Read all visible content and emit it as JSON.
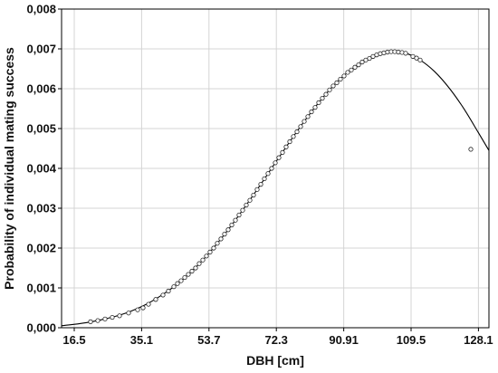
{
  "chart_data": {
    "type": "scatter",
    "xlabel": "DBH [cm]",
    "ylabel": "Probability of individual mating success",
    "xlim": [
      13.0,
      131.0
    ],
    "ylim": [
      0.0,
      0.008
    ],
    "xticks": [
      {
        "value": 16.5,
        "label": "16.5"
      },
      {
        "value": 35.1,
        "label": "35.1"
      },
      {
        "value": 53.7,
        "label": "53.7"
      },
      {
        "value": 72.3,
        "label": "72.3"
      },
      {
        "value": 90.91,
        "label": "90.91"
      },
      {
        "value": 109.5,
        "label": "109.5"
      },
      {
        "value": 128.1,
        "label": "128.1"
      }
    ],
    "yticks": [
      {
        "value": 0.0,
        "label": "0,000"
      },
      {
        "value": 0.001,
        "label": "0,001"
      },
      {
        "value": 0.002,
        "label": "0,002"
      },
      {
        "value": 0.003,
        "label": "0,003"
      },
      {
        "value": 0.004,
        "label": "0,004"
      },
      {
        "value": 0.005,
        "label": "0,005"
      },
      {
        "value": 0.006,
        "label": "0,006"
      },
      {
        "value": 0.007,
        "label": "0,007"
      },
      {
        "value": 0.008,
        "label": "0,008"
      }
    ],
    "grid": true,
    "fit_curve": {
      "x": [
        13,
        16,
        20,
        24,
        28,
        32,
        36,
        40,
        44,
        48,
        52,
        56,
        60,
        64,
        68,
        72,
        76,
        80,
        84,
        88,
        92,
        96,
        100,
        104,
        108,
        112,
        116,
        120,
        124,
        128,
        131
      ],
      "y": [
        5e-05,
        8e-05,
        0.00013,
        0.0002,
        0.00029,
        0.00041,
        0.00057,
        0.00078,
        0.00103,
        0.00134,
        0.0017,
        0.00212,
        0.00258,
        0.00308,
        0.0036,
        0.00414,
        0.00467,
        0.00518,
        0.00565,
        0.00607,
        0.00641,
        0.00667,
        0.00685,
        0.00693,
        0.00689,
        0.00672,
        0.00643,
        0.00602,
        0.00551,
        0.00491,
        0.00445
      ]
    },
    "points": {
      "x": [
        21,
        23,
        25,
        27,
        29,
        31.5,
        34,
        35.5,
        37,
        39,
        41,
        42.5,
        44,
        45,
        46,
        47,
        48,
        49,
        50,
        51,
        52,
        53,
        54,
        55,
        56,
        57,
        58,
        59,
        60,
        61,
        62,
        63,
        64,
        65,
        66,
        67,
        68,
        69,
        70,
        71,
        72,
        73,
        74,
        75,
        76,
        77,
        78,
        79,
        80,
        81,
        82,
        83,
        84,
        85,
        86,
        87,
        88,
        89,
        90,
        91,
        92,
        93,
        94,
        95,
        96,
        97,
        98,
        99,
        100,
        101,
        102,
        103,
        104,
        105,
        106,
        107,
        108,
        110,
        111,
        112,
        126
      ],
      "y": [
        0.00015,
        0.00018,
        0.00022,
        0.00026,
        0.0003,
        0.00037,
        0.00045,
        0.0005,
        0.00059,
        0.00071,
        0.00082,
        0.00092,
        0.00103,
        0.00111,
        0.00118,
        0.00126,
        0.00134,
        0.00142,
        0.0015,
        0.00161,
        0.0017,
        0.0018,
        0.0019,
        0.002,
        0.00212,
        0.00223,
        0.00235,
        0.00246,
        0.00258,
        0.0027,
        0.00283,
        0.00295,
        0.00308,
        0.0032,
        0.00333,
        0.00347,
        0.0036,
        0.00374,
        0.00387,
        0.004,
        0.00414,
        0.00427,
        0.0044,
        0.00454,
        0.00467,
        0.0048,
        0.00492,
        0.00505,
        0.00518,
        0.0053,
        0.00542,
        0.00553,
        0.00565,
        0.00576,
        0.00586,
        0.00597,
        0.00607,
        0.00615,
        0.00624,
        0.00632,
        0.00641,
        0.00647,
        0.00654,
        0.0066,
        0.00667,
        0.00672,
        0.00676,
        0.00681,
        0.00685,
        0.00688,
        0.0069,
        0.00692,
        0.00693,
        0.00693,
        0.00692,
        0.00691,
        0.00689,
        0.00681,
        0.00677,
        0.00672,
        0.00448
      ]
    },
    "colors": {
      "curve": "#000000",
      "marker_stroke": "#222222",
      "grid": "#d4d4d4",
      "axis": "#000000"
    }
  }
}
